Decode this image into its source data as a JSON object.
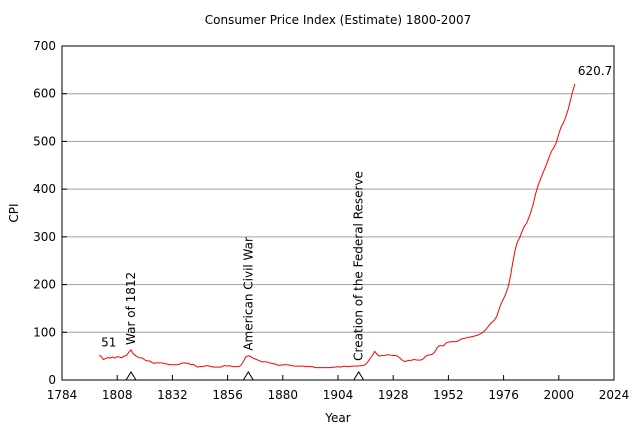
{
  "chart_data": {
    "type": "line",
    "title": "Consumer Price Index (Estimate) 1800-2007",
    "x_label": "Year",
    "y_label": "CPI",
    "color": "#ff0000",
    "x": [
      1800,
      1801,
      1802,
      1803,
      1804,
      1805,
      1806,
      1807,
      1808,
      1809,
      1810,
      1811,
      1812,
      1813,
      1814,
      1815,
      1816,
      1817,
      1818,
      1819,
      1820,
      1821,
      1822,
      1823,
      1824,
      1825,
      1826,
      1827,
      1828,
      1829,
      1830,
      1831,
      1832,
      1833,
      1834,
      1835,
      1836,
      1837,
      1838,
      1839,
      1840,
      1841,
      1842,
      1843,
      1844,
      1845,
      1846,
      1847,
      1848,
      1849,
      1850,
      1851,
      1852,
      1853,
      1854,
      1855,
      1856,
      1857,
      1858,
      1859,
      1860,
      1861,
      1862,
      1863,
      1864,
      1865,
      1866,
      1867,
      1868,
      1869,
      1870,
      1871,
      1872,
      1873,
      1874,
      1875,
      1876,
      1877,
      1878,
      1879,
      1880,
      1881,
      1882,
      1883,
      1884,
      1885,
      1886,
      1887,
      1888,
      1889,
      1890,
      1891,
      1892,
      1893,
      1894,
      1895,
      1896,
      1897,
      1898,
      1899,
      1900,
      1901,
      1902,
      1903,
      1904,
      1905,
      1906,
      1907,
      1908,
      1909,
      1910,
      1911,
      1912,
      1913,
      1914,
      1915,
      1916,
      1917,
      1918,
      1919,
      1920,
      1921,
      1922,
      1923,
      1924,
      1925,
      1926,
      1927,
      1928,
      1929,
      1930,
      1931,
      1932,
      1933,
      1934,
      1935,
      1936,
      1937,
      1938,
      1939,
      1940,
      1941,
      1942,
      1943,
      1944,
      1945,
      1946,
      1947,
      1948,
      1949,
      1950,
      1951,
      1952,
      1953,
      1954,
      1955,
      1956,
      1957,
      1958,
      1959,
      1960,
      1961,
      1962,
      1963,
      1964,
      1965,
      1966,
      1967,
      1968,
      1969,
      1970,
      1971,
      1972,
      1973,
      1974,
      1975,
      1976,
      1977,
      1978,
      1979,
      1980,
      1981,
      1982,
      1983,
      1984,
      1985,
      1986,
      1987,
      1988,
      1989,
      1990,
      1991,
      1992,
      1993,
      1994,
      1995,
      1996,
      1997,
      1998,
      1999,
      2000,
      2001,
      2002,
      2003,
      2004,
      2005,
      2006,
      2007
    ],
    "values": [
      51,
      50,
      43,
      45,
      47,
      46,
      48,
      46,
      49,
      48,
      47,
      50,
      51,
      58,
      63,
      55,
      51,
      48,
      46,
      46,
      42,
      40,
      40,
      37,
      35,
      36,
      36,
      36,
      35,
      34,
      33,
      32,
      32,
      32,
      32,
      33,
      35,
      36,
      35,
      35,
      32,
      33,
      30,
      27,
      28,
      28,
      29,
      30,
      29,
      28,
      27,
      27,
      27,
      27,
      29,
      30,
      29,
      30,
      28,
      28,
      28,
      28,
      32,
      40,
      49,
      51,
      49,
      46,
      44,
      42,
      40,
      38,
      38,
      38,
      36,
      35,
      34,
      33,
      31,
      31,
      32,
      32,
      32,
      31,
      30,
      29,
      29,
      29,
      29,
      29,
      28,
      28,
      28,
      28,
      26,
      26,
      26,
      26,
      26,
      26,
      26,
      26,
      27,
      27,
      28,
      27,
      28,
      29,
      28,
      28,
      29,
      29,
      29,
      29.7,
      30,
      30.4,
      32.7,
      38.4,
      45.1,
      51.8,
      60,
      53.6,
      50.2,
      51.1,
      51.1,
      52.5,
      53,
      52,
      51.3,
      51.3,
      50,
      45.6,
      41.1,
      38.8,
      40.1,
      41.1,
      41.5,
      43,
      42.2,
      41.6,
      42,
      44.1,
      48.8,
      51.8,
      52.7,
      53.9,
      58.5,
      66.9,
      72.1,
      71.4,
      72.1,
      77.8,
      79.5,
      80.1,
      80.5,
      80.2,
      81.4,
      84.3,
      86.6,
      87.3,
      88.7,
      89.6,
      90.6,
      91.7,
      92.9,
      94.5,
      97.2,
      100,
      104.2,
      109.8,
      116.3,
      121.3,
      125.3,
      133.1,
      147.7,
      161.2,
      170.5,
      181.5,
      195.4,
      217.4,
      246.8,
      272.4,
      289.1,
      298.4,
      311.1,
      322.2,
      328.4,
      340.4,
      354.3,
      371.3,
      391.4,
      408,
      420.3,
      432.7,
      444,
      456.5,
      469.9,
      480.8,
      488.3,
      499,
      515.8,
      530.4,
      538.8,
      551.1,
      565.8,
      585,
      603.9,
      620.7
    ],
    "point_labels": [
      {
        "text": "51",
        "x": 1800
      },
      {
        "text": "620.7",
        "x": 2007
      }
    ],
    "events": [
      {
        "text": "War of 1812",
        "x": 1814
      },
      {
        "text": "American Civil War",
        "x": 1865
      },
      {
        "text": "Creation of the Federal Reserve",
        "x": 1913
      }
    ],
    "xlim": [
      1784,
      2024
    ],
    "xticks": [
      1784,
      1808,
      1832,
      1856,
      1880,
      1904,
      1928,
      1952,
      1976,
      2000,
      2024
    ],
    "ylim": [
      0,
      700
    ],
    "yticks": [
      0,
      100,
      200,
      300,
      400,
      500,
      600,
      700
    ],
    "grid": true
  }
}
